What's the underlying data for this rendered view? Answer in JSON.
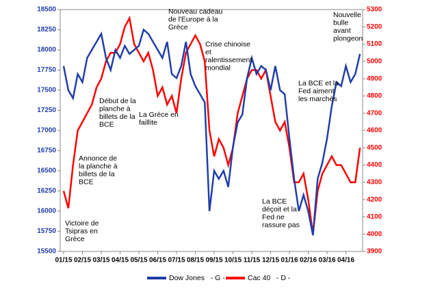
{
  "chart_data": {
    "type": "line",
    "categories": [
      "01/15",
      null,
      null,
      null,
      "02/15",
      null,
      null,
      null,
      "03/15",
      null,
      null,
      null,
      "04/15",
      null,
      null,
      null,
      "05/15",
      null,
      null,
      null,
      "06/15",
      null,
      null,
      null,
      "07/15",
      null,
      null,
      null,
      "08/15",
      null,
      null,
      null,
      "09/15",
      null,
      null,
      null,
      "10/15",
      null,
      null,
      null,
      "11/15",
      null,
      null,
      null,
      "12/15",
      null,
      null,
      null,
      "01/16",
      null,
      null,
      null,
      "02/16",
      null,
      null,
      null,
      "03/16",
      null,
      null,
      null,
      "04/16",
      null,
      null,
      null
    ],
    "series": [
      {
        "name": "Dow Jones   - G -",
        "color": "#1f3ea8",
        "axis": "y",
        "values": [
          17800,
          17500,
          17400,
          17700,
          17600,
          17900,
          18000,
          18100,
          18200,
          17900,
          17750,
          18000,
          17900,
          18050,
          17950,
          18000,
          18050,
          18250,
          18200,
          18100,
          18000,
          17900,
          18100,
          17700,
          17650,
          17800,
          18100,
          17700,
          17550,
          17450,
          17350,
          16000,
          16500,
          16400,
          16500,
          16300,
          16800,
          17100,
          17200,
          17650,
          17900,
          17700,
          17800,
          17750,
          17500,
          17800,
          17500,
          17450,
          16900,
          16400,
          16000,
          16200,
          16000,
          15700,
          16400,
          16600,
          16900,
          17300,
          17600,
          17550,
          17800,
          17600,
          17700,
          17950
        ]
      },
      {
        "name": "Cac 40   - D -",
        "color": "#ff0000",
        "axis": "y2",
        "values": [
          4250,
          4150,
          4400,
          4600,
          4650,
          4700,
          4750,
          4850,
          4900,
          5000,
          5050,
          5050,
          5100,
          5200,
          5250,
          5100,
          5050,
          5000,
          5050,
          4950,
          4800,
          4850,
          4750,
          4800,
          4700,
          4900,
          5050,
          5100,
          5150,
          5100,
          5000,
          4600,
          4450,
          4550,
          4500,
          4400,
          4500,
          4700,
          4800,
          4900,
          4950,
          4950,
          4900,
          4950,
          4800,
          4650,
          4600,
          4650,
          4500,
          4300,
          4300,
          4350,
          4200,
          4000,
          4250,
          4350,
          4400,
          4450,
          4400,
          4400,
          4350,
          4300,
          4300,
          4500
        ]
      }
    ],
    "ylim": [
      15500,
      18500
    ],
    "yticks": [
      15500,
      15750,
      16000,
      16250,
      16500,
      16750,
      17000,
      17250,
      17500,
      17750,
      18000,
      18250,
      18500
    ],
    "y2lim": [
      3900,
      5300
    ],
    "y2ticks": [
      3900,
      4000,
      4100,
      4200,
      4300,
      4400,
      4500,
      4600,
      4700,
      4800,
      4900,
      5000,
      5100,
      5200,
      5300
    ],
    "grid": false,
    "annotations": [
      [
        "Victoire de",
        "Tsipras en",
        "Grèce"
      ],
      [
        "Annonce de",
        "la planche à",
        "billets de la",
        "BCE"
      ],
      [
        "Début de la",
        "planche à",
        "billets de la",
        "BCE"
      ],
      [
        "La Grèce en",
        "faillite"
      ],
      [
        "Nouveau cadeau",
        "de l'Europe à la",
        "Grèce"
      ],
      [
        "Crise chinoise",
        "et",
        "ralentissement",
        "mondial"
      ],
      [
        "La BCE",
        "déçoit et la",
        "Fed ne",
        "rassure pas"
      ],
      [
        "La BCE et la",
        "Fed aiment",
        "les marchés"
      ],
      [
        "Nouvelle",
        "bulle",
        "avant",
        "plongeon"
      ]
    ]
  }
}
